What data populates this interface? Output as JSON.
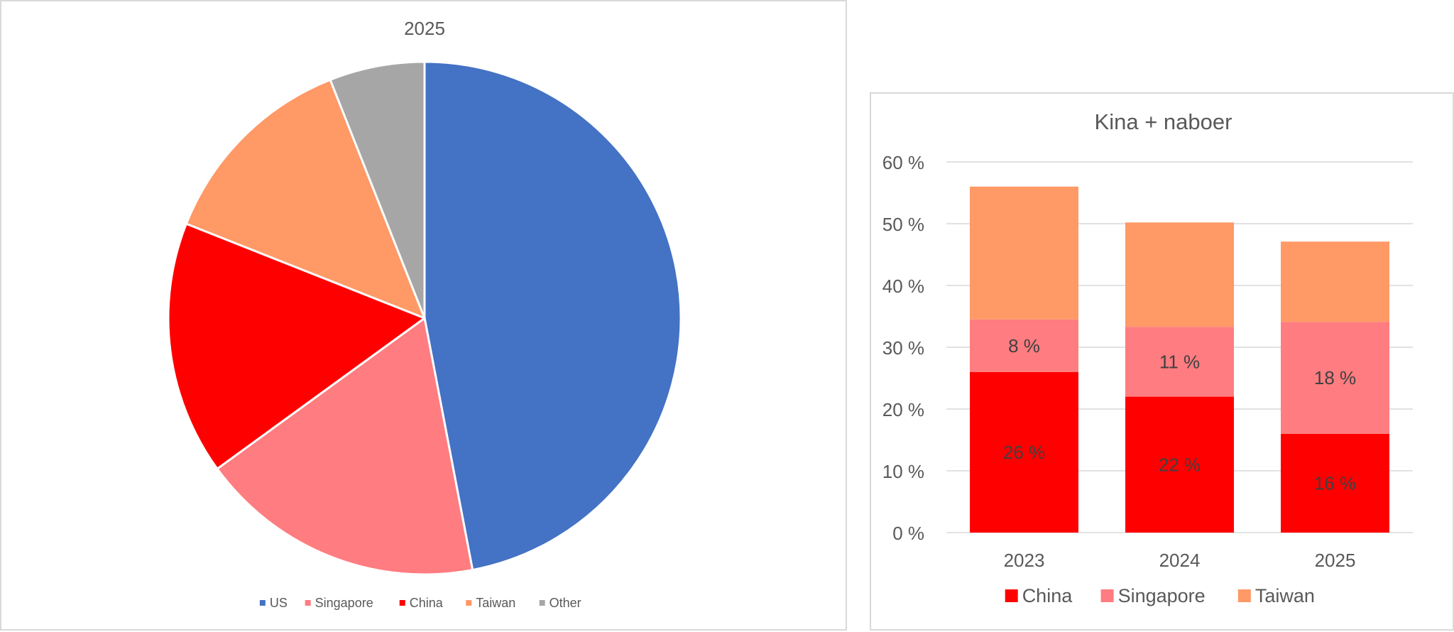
{
  "chart_data": [
    {
      "type": "pie",
      "title": "2025",
      "categories": [
        "US",
        "Singapore",
        "China",
        "Taiwan",
        "Other"
      ],
      "values": [
        47,
        18,
        16,
        13,
        6
      ],
      "colors": [
        "#4472c4",
        "#ff7c80",
        "#ff0000",
        "#ff9966",
        "#a6a6a6"
      ],
      "legend_position": "bottom"
    },
    {
      "type": "bar",
      "stacked": true,
      "title": "Kina + naboer",
      "categories": [
        "2023",
        "2024",
        "2025"
      ],
      "series": [
        {
          "name": "China",
          "values": [
            26,
            22,
            16
          ],
          "color": "#ff0000",
          "labels": [
            "26 %",
            "22 %",
            "16 %"
          ]
        },
        {
          "name": "Singapore",
          "values": [
            8.5,
            11.3,
            18.1
          ],
          "color": "#ff7c80",
          "labels": [
            "8 %",
            "11 %",
            "18 %"
          ]
        },
        {
          "name": "Taiwan",
          "values": [
            21.5,
            16.9,
            13.0
          ],
          "color": "#ff9966",
          "labels": [
            "",
            "",
            ""
          ]
        }
      ],
      "ylim": [
        0,
        60
      ],
      "yticks": [
        "0 %",
        "10 %",
        "20 %",
        "30 %",
        "40 %",
        "50 %",
        "60 %"
      ],
      "ytick_values": [
        0,
        10,
        20,
        30,
        40,
        50,
        60
      ],
      "grid": true,
      "legend_position": "bottom"
    }
  ]
}
